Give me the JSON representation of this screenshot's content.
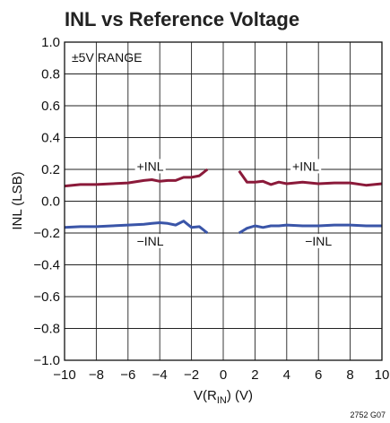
{
  "chart_data": {
    "type": "line",
    "title": "INL vs Reference Voltage",
    "xlabel_main": "V(R",
    "xlabel_sub": "IN",
    "xlabel_tail": ") (V)",
    "ylabel": "INL (LSB)",
    "range_note": "±5V RANGE",
    "figure_id": "2752 G07",
    "xlim": [
      -10,
      10
    ],
    "ylim": [
      -1.0,
      1.0
    ],
    "xticks": [
      -10,
      -8,
      -6,
      -4,
      -2,
      0,
      2,
      4,
      6,
      8,
      10
    ],
    "xtick_labels": [
      "−10",
      "−8",
      "−6",
      "−4",
      "−2",
      "0",
      "2",
      "4",
      "6",
      "8",
      "10"
    ],
    "yticks": [
      -1.0,
      -0.8,
      -0.6,
      -0.4,
      -0.2,
      0.0,
      0.2,
      0.4,
      0.6,
      0.8,
      1.0
    ],
    "ytick_labels": [
      "−1.0",
      "−0.8",
      "−0.6",
      "−0.4",
      "−0.2",
      "0.0",
      "0.2",
      "0.4",
      "0.6",
      "0.8",
      "1.0"
    ],
    "grid": true,
    "series": [
      {
        "name": "+INL",
        "color": "#8b1a3a",
        "segments": [
          {
            "x": [
              -10,
              -9,
              -8,
              -7,
              -6,
              -5,
              -4.5,
              -4,
              -3.5,
              -3,
              -2.5,
              -2,
              -1.5,
              -1
            ],
            "y": [
              0.095,
              0.105,
              0.105,
              0.11,
              0.115,
              0.13,
              0.135,
              0.125,
              0.13,
              0.13,
              0.15,
              0.15,
              0.16,
              0.2
            ]
          },
          {
            "x": [
              1,
              1.5,
              2,
              2.5,
              3,
              3.5,
              4,
              5,
              6,
              7,
              8,
              9,
              10
            ],
            "y": [
              0.19,
              0.12,
              0.12,
              0.125,
              0.105,
              0.12,
              0.11,
              0.12,
              0.11,
              0.115,
              0.115,
              0.1,
              0.11
            ]
          }
        ]
      },
      {
        "name": "−INL",
        "color": "#3a55a8",
        "segments": [
          {
            "x": [
              -10,
              -9,
              -8,
              -7,
              -6,
              -5,
              -4.5,
              -4,
              -3.5,
              -3,
              -2.5,
              -2,
              -1.5,
              -1
            ],
            "y": [
              -0.165,
              -0.16,
              -0.16,
              -0.155,
              -0.15,
              -0.145,
              -0.14,
              -0.135,
              -0.14,
              -0.15,
              -0.125,
              -0.165,
              -0.16,
              -0.2
            ]
          },
          {
            "x": [
              1,
              1.5,
              2,
              2.5,
              3,
              3.5,
              4,
              5,
              6,
              7,
              8,
              9,
              10
            ],
            "y": [
              -0.2,
              -0.17,
              -0.155,
              -0.165,
              -0.155,
              -0.155,
              -0.15,
              -0.155,
              -0.155,
              -0.15,
              -0.15,
              -0.155,
              -0.155
            ]
          }
        ]
      }
    ],
    "annotations": [
      {
        "text": "+INL",
        "x": -4.6,
        "y": 0.22,
        "series": 0
      },
      {
        "text": "+INL",
        "x": 5.2,
        "y": 0.22,
        "series": 0
      },
      {
        "text": "−INL",
        "x": -4.6,
        "y": -0.25,
        "series": 1
      },
      {
        "text": "−INL",
        "x": 6.0,
        "y": -0.25,
        "series": 1
      }
    ]
  }
}
